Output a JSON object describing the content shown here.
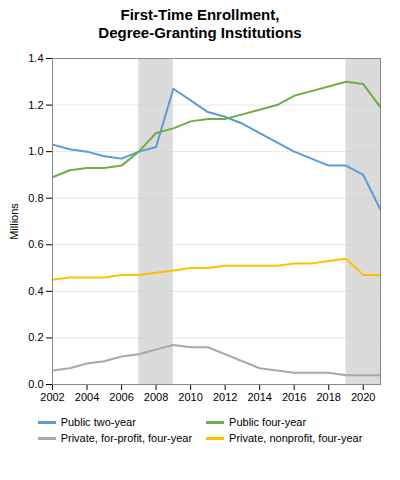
{
  "chart_data": {
    "type": "line",
    "title": "First-Time Enrollment,\nDegree-Granting Institutions",
    "ylabel": "Millions",
    "x": [
      2002,
      2003,
      2004,
      2005,
      2006,
      2007,
      2008,
      2009,
      2010,
      2011,
      2012,
      2013,
      2014,
      2015,
      2016,
      2017,
      2018,
      2019,
      2020,
      2021
    ],
    "series": [
      {
        "name": "Public two-year",
        "color": "#5B9BD5",
        "values": [
          1.03,
          1.01,
          1.0,
          0.98,
          0.97,
          1.0,
          1.02,
          1.27,
          1.22,
          1.17,
          1.15,
          1.12,
          1.08,
          1.04,
          1.0,
          0.97,
          0.94,
          0.94,
          0.9,
          0.75
        ]
      },
      {
        "name": "Public four-year",
        "color": "#70AD47",
        "values": [
          0.89,
          0.92,
          0.93,
          0.93,
          0.94,
          1.0,
          1.08,
          1.1,
          1.13,
          1.14,
          1.14,
          1.16,
          1.18,
          1.2,
          1.24,
          1.26,
          1.28,
          1.3,
          1.29,
          1.19
        ]
      },
      {
        "name": "Private, for-profit, four-year",
        "color": "#A9A9A9",
        "values": [
          0.06,
          0.07,
          0.09,
          0.1,
          0.12,
          0.13,
          0.15,
          0.17,
          0.16,
          0.16,
          0.13,
          0.1,
          0.07,
          0.06,
          0.05,
          0.05,
          0.05,
          0.04,
          0.04,
          0.04
        ]
      },
      {
        "name": "Private, nonprofit, four-year",
        "color": "#FFC000",
        "values": [
          0.45,
          0.46,
          0.46,
          0.46,
          0.47,
          0.47,
          0.48,
          0.49,
          0.5,
          0.5,
          0.51,
          0.51,
          0.51,
          0.51,
          0.52,
          0.52,
          0.53,
          0.54,
          0.47,
          0.47
        ]
      }
    ],
    "shaded_ranges": [
      {
        "x": [
          2007,
          2009
        ],
        "color": "#cccccc"
      },
      {
        "x": [
          2019,
          2021
        ],
        "color": "#cccccc"
      }
    ],
    "xlim": [
      2002,
      2021
    ],
    "xticks": [
      2002,
      2004,
      2006,
      2008,
      2010,
      2012,
      2014,
      2016,
      2018,
      2020
    ],
    "ylim": [
      0.0,
      1.4
    ],
    "yticks": [
      {
        "value": 0.0,
        "label": "0.0"
      },
      0.2,
      0.4,
      0.6,
      0.8,
      {
        "value": 1.0,
        "label": "1.0"
      },
      1.2,
      1.4
    ],
    "grid": true
  }
}
